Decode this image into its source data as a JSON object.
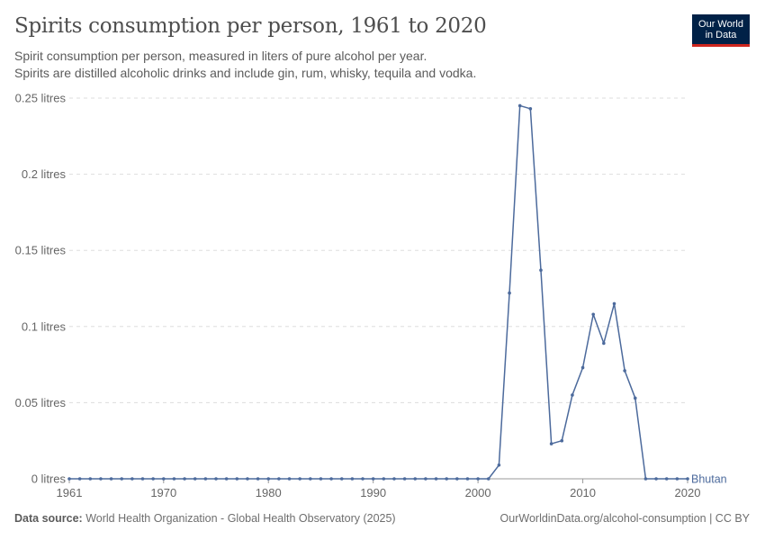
{
  "header": {
    "title": "Spirits consumption per person, 1961 to 2020",
    "subtitle_line1": "Spirit consumption per person, measured in liters of pure alcohol per year.",
    "subtitle_line2": "Spirits are distilled alcoholic drinks and include gin, rum, whisky, tequila and vodka."
  },
  "logo": {
    "line1": "Our World",
    "line2": "in Data",
    "bg": "#002147",
    "accent": "#ce261e"
  },
  "footer": {
    "source_label": "Data source:",
    "source_text": "World Health Organization - Global Health Observatory (2025)",
    "right_text": "OurWorldinData.org/alcohol-consumption | CC BY"
  },
  "chart_data": {
    "type": "line",
    "xlim": [
      1961,
      2020
    ],
    "ylim": [
      0,
      0.25
    ],
    "x_ticks": [
      1961,
      1970,
      1980,
      1990,
      2000,
      2010,
      2020
    ],
    "y_ticks": [
      0,
      0.05,
      0.1,
      0.15,
      0.2,
      0.25
    ],
    "y_tick_labels": [
      "0 litres",
      "0.05 litres",
      "0.1 litres",
      "0.15 litres",
      "0.2 litres",
      "0.25 litres"
    ],
    "grid": "horizontal dashed",
    "series": [
      {
        "name": "Bhutan",
        "color": "#4c6a9c",
        "x": [
          1961,
          1962,
          1963,
          1964,
          1965,
          1966,
          1967,
          1968,
          1969,
          1970,
          1971,
          1972,
          1973,
          1974,
          1975,
          1976,
          1977,
          1978,
          1979,
          1980,
          1981,
          1982,
          1983,
          1984,
          1985,
          1986,
          1987,
          1988,
          1989,
          1990,
          1991,
          1992,
          1993,
          1994,
          1995,
          1996,
          1997,
          1998,
          1999,
          2000,
          2001,
          2002,
          2003,
          2004,
          2005,
          2006,
          2007,
          2008,
          2009,
          2010,
          2011,
          2012,
          2013,
          2014,
          2015,
          2016,
          2017,
          2018,
          2019,
          2020
        ],
        "y": [
          0,
          0,
          0,
          0,
          0,
          0,
          0,
          0,
          0,
          0,
          0,
          0,
          0,
          0,
          0,
          0,
          0,
          0,
          0,
          0,
          0,
          0,
          0,
          0,
          0,
          0,
          0,
          0,
          0,
          0,
          0,
          0,
          0,
          0,
          0,
          0,
          0,
          0,
          0,
          0,
          0,
          0.009,
          0.122,
          0.245,
          0.243,
          0.137,
          0.023,
          0.025,
          0.055,
          0.073,
          0.108,
          0.089,
          0.115,
          0.071,
          0.053,
          0,
          0,
          0,
          0,
          0
        ]
      }
    ]
  }
}
